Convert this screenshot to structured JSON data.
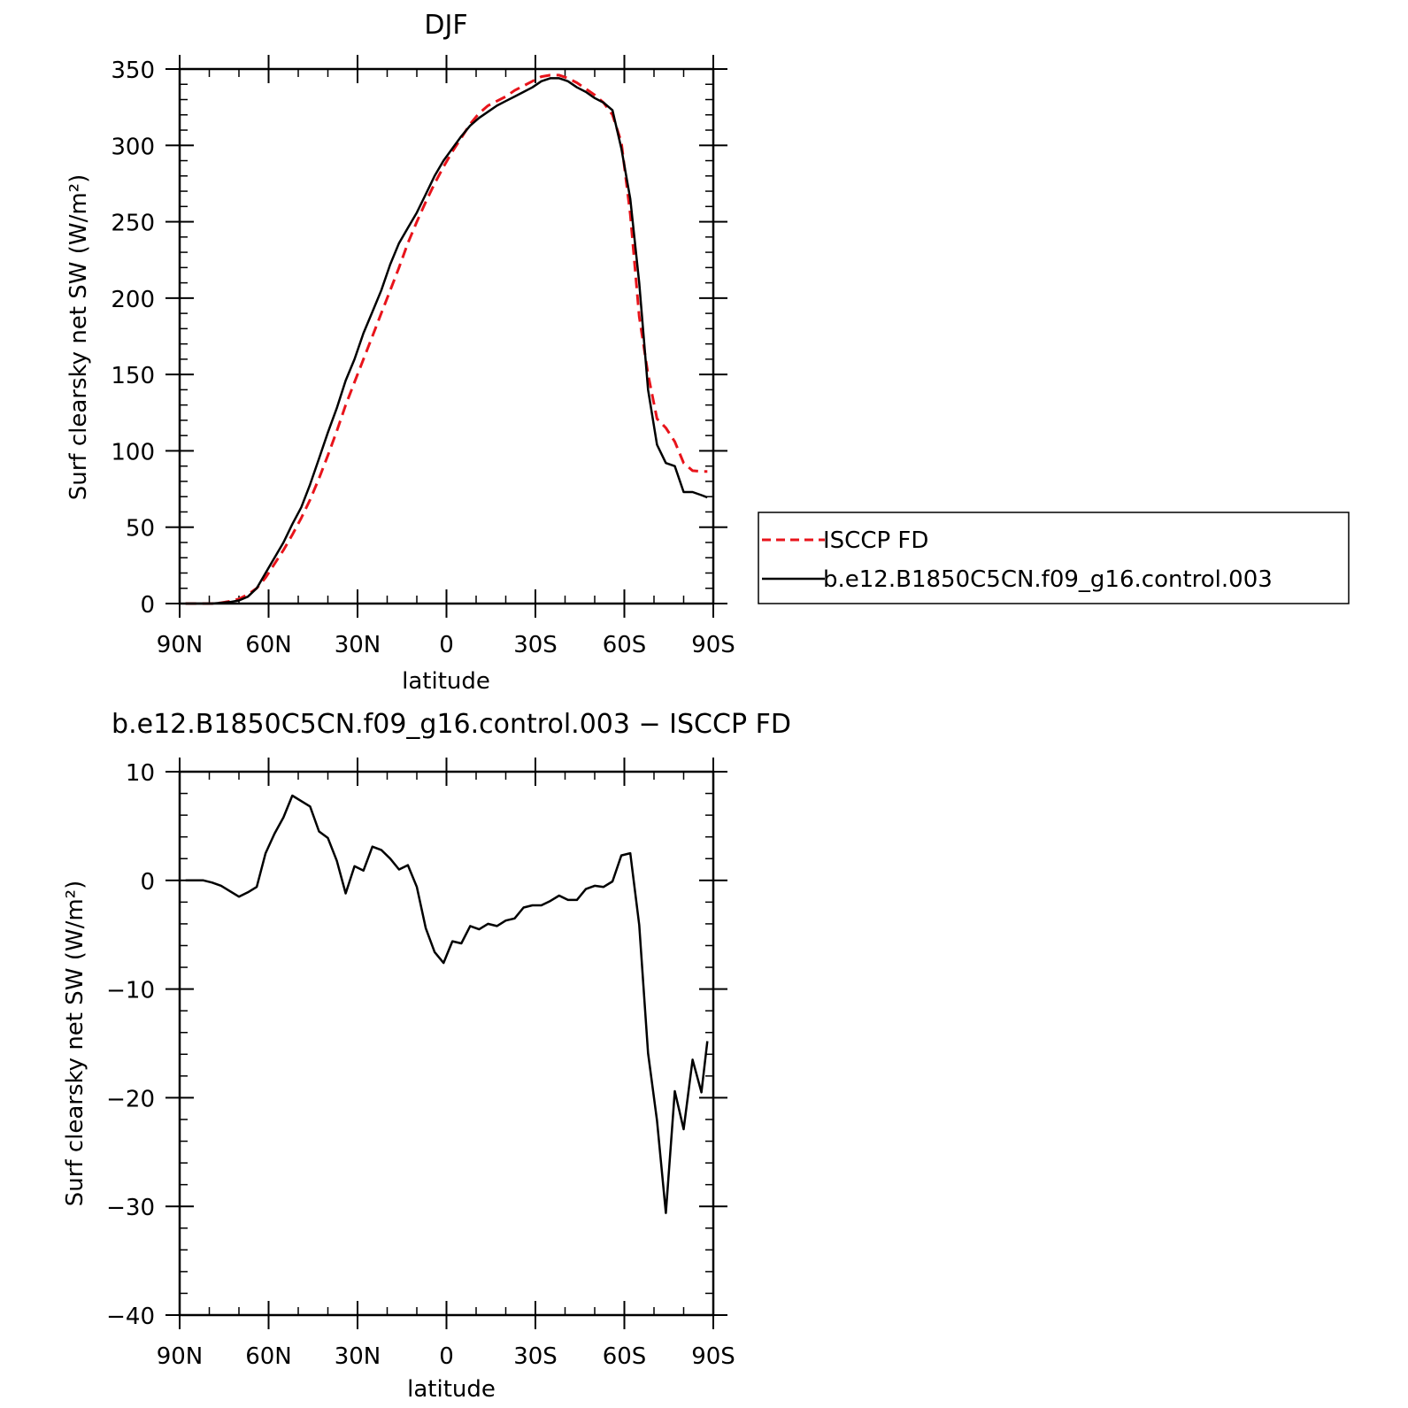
{
  "chart_data": [
    {
      "type": "line",
      "title": "DJF",
      "xlabel": "latitude",
      "ylabel": "Surf clearsky net SW (W/m²)",
      "xlim": [
        90,
        -90
      ],
      "ylim": [
        0,
        350
      ],
      "xticks": [
        90,
        60,
        30,
        0,
        -30,
        -60,
        -90
      ],
      "xtick_labels": [
        "90N",
        "60N",
        "30N",
        "0",
        "30S",
        "60S",
        "90S"
      ],
      "yticks": [
        0,
        50,
        100,
        150,
        200,
        250,
        300,
        350
      ],
      "ytick_labels": [
        "0",
        "50",
        "100",
        "150",
        "200",
        "250",
        "300",
        "350"
      ],
      "legend": "right",
      "series": [
        {
          "name": "ISCCP FD",
          "color": "#e8141b",
          "dash": "dashed",
          "x": [
            88,
            85,
            82,
            79,
            76,
            73,
            70,
            67,
            64,
            61,
            58,
            55,
            52,
            49,
            46,
            43,
            40,
            37,
            34,
            31,
            28,
            25,
            22,
            19,
            16,
            13,
            10,
            7,
            4,
            1,
            -2,
            -5,
            -8,
            -11,
            -14,
            -17,
            -20,
            -23,
            -26,
            -29,
            -32,
            -35,
            -38,
            -41,
            -44,
            -47,
            -50,
            -53,
            -56,
            -59,
            -62,
            -65,
            -68,
            -71,
            -74,
            -77,
            -80,
            -83,
            -86,
            -88
          ],
          "y": [
            0,
            0,
            0,
            0,
            0.5,
            1.5,
            3,
            6,
            10,
            17,
            26,
            35,
            45,
            56,
            68,
            82,
            97,
            113,
            130,
            145,
            160,
            175,
            190,
            205,
            220,
            236,
            250,
            263,
            275,
            286,
            296,
            305,
            314,
            321,
            326,
            329,
            332,
            336,
            339,
            342,
            345,
            346,
            346,
            344,
            341,
            337,
            333,
            328,
            320,
            302,
            255,
            188,
            150,
            121,
            115,
            106,
            92,
            87,
            86.5,
            86.5
          ]
        },
        {
          "name": "b.e12.B1850C5CN.f09_g16.control.003",
          "color": "#000000",
          "dash": "solid",
          "x": [
            88,
            85,
            82,
            79,
            76,
            73,
            70,
            67,
            64,
            61,
            58,
            55,
            52,
            49,
            46,
            43,
            40,
            37,
            34,
            31,
            28,
            25,
            22,
            19,
            16,
            13,
            10,
            7,
            4,
            1,
            -2,
            -5,
            -8,
            -11,
            -14,
            -17,
            -20,
            -23,
            -26,
            -29,
            -32,
            -35,
            -38,
            -41,
            -44,
            -47,
            -50,
            -53,
            -56,
            -59,
            -62,
            -65,
            -68,
            -71,
            -74,
            -77,
            -80,
            -83,
            -86,
            -88
          ],
          "y": [
            0,
            0,
            0,
            0,
            0.5,
            1,
            2,
            4.5,
            10,
            20,
            30,
            40,
            52,
            63,
            78,
            95,
            112,
            128,
            146,
            160,
            177,
            191,
            205,
            222,
            236,
            246,
            256,
            268,
            280,
            290,
            298,
            306,
            313,
            318,
            322,
            326,
            329,
            332,
            335,
            338,
            342,
            344,
            344,
            342,
            338,
            335,
            331,
            328,
            323,
            298,
            265,
            210,
            140,
            104,
            92,
            90,
            73,
            73,
            71,
            69.5
          ]
        }
      ]
    },
    {
      "type": "line",
      "title": "b.e12.B1850C5CN.f09_g16.control.003 − ISCCP FD",
      "xlabel": "latitude",
      "ylabel": "Surf clearsky net SW (W/m²)",
      "xlim": [
        90,
        -90
      ],
      "ylim": [
        -40,
        10
      ],
      "xticks": [
        90,
        60,
        30,
        0,
        -30,
        -60,
        -90
      ],
      "xtick_labels": [
        "90N",
        "60N",
        "30N",
        "0",
        "30S",
        "60S",
        "90S"
      ],
      "yticks": [
        10,
        0,
        -10,
        -20,
        -30,
        -40
      ],
      "ytick_labels": [
        "10",
        "0",
        "−10",
        "−20",
        "−30",
        "−40"
      ],
      "series": [
        {
          "color": "#000000",
          "dash": "solid",
          "x": [
            88,
            85,
            82,
            79,
            76,
            73,
            70,
            67,
            64,
            61,
            58,
            55,
            52,
            49,
            46,
            43,
            40,
            37,
            34,
            31,
            28,
            25,
            22,
            19,
            16,
            13,
            10,
            7,
            4,
            1,
            -2,
            -5,
            -8,
            -11,
            -14,
            -17,
            -20,
            -23,
            -26,
            -29,
            -32,
            -35,
            -38,
            -41,
            -44,
            -47,
            -50,
            -53,
            -56,
            -59,
            -62,
            -65,
            -68,
            -71,
            -74,
            -77,
            -80,
            -83,
            -86,
            -88
          ],
          "y": [
            0,
            0,
            0,
            -0.2,
            -0.5,
            -1,
            -1.5,
            -1.1,
            -0.6,
            2.5,
            4.3,
            5.8,
            7.8,
            7.3,
            6.8,
            4.5,
            3.9,
            1.8,
            -1.2,
            1.3,
            0.9,
            3.1,
            2.8,
            2.0,
            1.0,
            1.4,
            -0.6,
            -4.4,
            -6.6,
            -7.6,
            -5.6,
            -5.8,
            -4.2,
            -4.5,
            -4.0,
            -4.2,
            -3.7,
            -3.5,
            -2.5,
            -2.3,
            -2.3,
            -1.9,
            -1.4,
            -1.8,
            -1.8,
            -0.8,
            -0.5,
            -0.6,
            -0.1,
            2.3,
            2.5,
            -4.1,
            -15.9,
            -22.1,
            -30.6,
            -19.4,
            -22.9,
            -16.5,
            -19.5,
            -14.8
          ]
        }
      ]
    }
  ]
}
